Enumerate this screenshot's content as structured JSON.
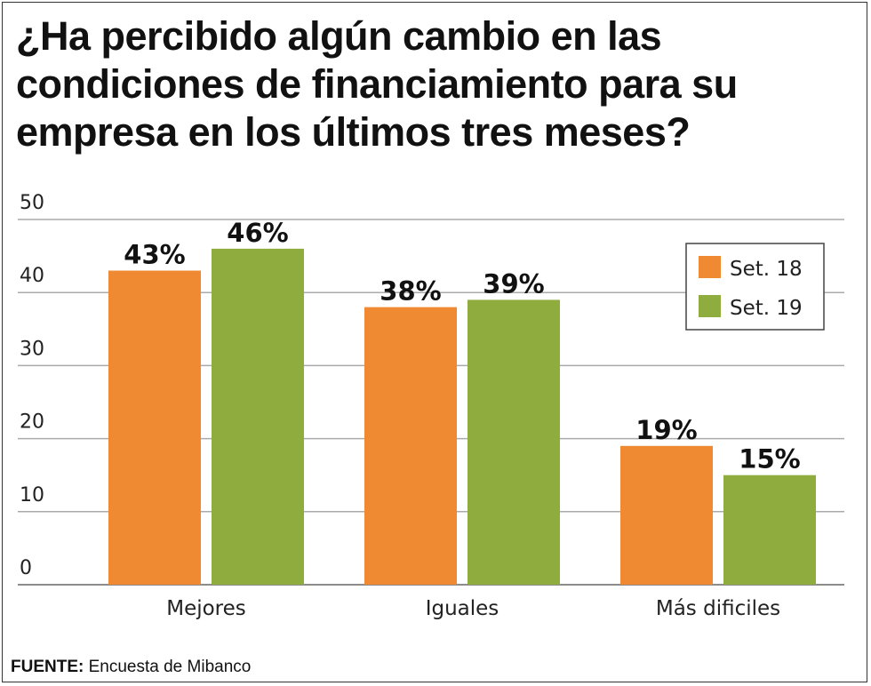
{
  "chart_data": {
    "type": "bar",
    "title": "¿Ha percibido algún cambio en las condiciones de financiamiento para su empresa en los últimos tres meses?",
    "categories": [
      "Mejores",
      "Iguales",
      "Más dificiles"
    ],
    "series": [
      {
        "name": "Set. 18",
        "values": [
          43,
          38,
          19
        ],
        "labels": [
          "43%",
          "38%",
          "19%"
        ],
        "color": "#f08a32"
      },
      {
        "name": "Set. 19",
        "values": [
          46,
          39,
          15
        ],
        "labels": [
          "46%",
          "39%",
          "15%"
        ],
        "color": "#8fad3f"
      }
    ],
    "yticks": [
      "0",
      "10",
      "20",
      "30",
      "40",
      "50"
    ],
    "ylim": [
      0,
      50
    ],
    "grid": true,
    "legend_position": "top-right"
  },
  "source": {
    "label": "FUENTE:",
    "text": "Encuesta de Mibanco"
  }
}
